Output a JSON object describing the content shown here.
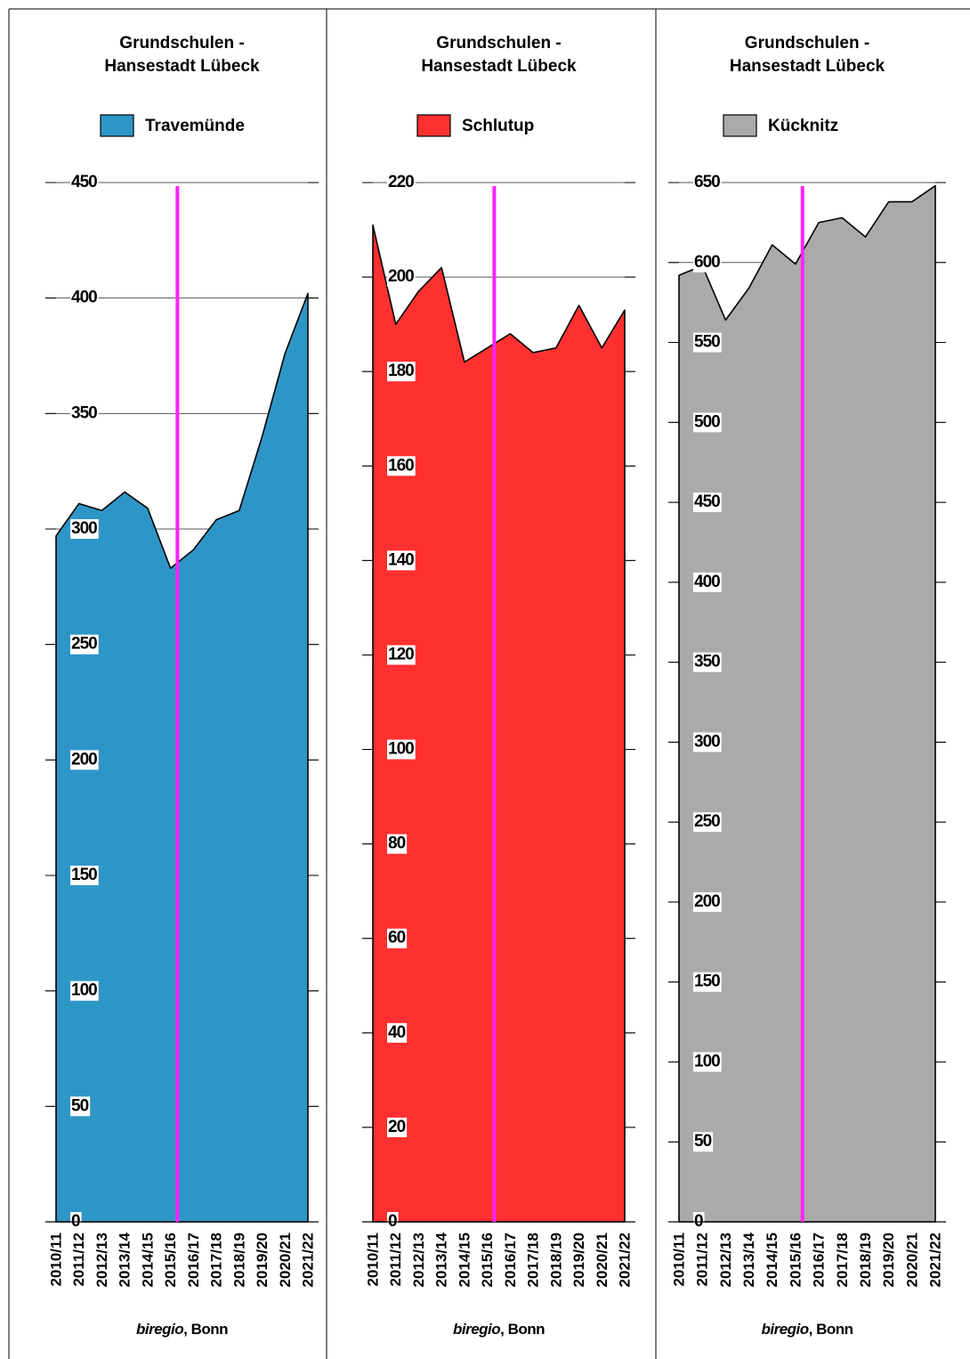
{
  "chart_data": [
    {
      "type": "area",
      "title": "Grundschulen - Hansestadt Lübeck",
      "categories": [
        "2010/11",
        "2011/12",
        "2012/13",
        "2013/14",
        "2014/15",
        "2015/16",
        "2016/17",
        "2017/18",
        "2018/19",
        "2019/20",
        "2020/21",
        "2021/22"
      ],
      "series": [
        {
          "name": "Travemünde",
          "color": "#2e96c7",
          "values": [
            297,
            311,
            308,
            316,
            309,
            283,
            291,
            304,
            308,
            340,
            376,
            402
          ]
        }
      ],
      "ylim": [
        0,
        450
      ],
      "yticks": [
        0,
        50,
        100,
        150,
        200,
        250,
        300,
        350,
        400,
        450
      ],
      "grid": true,
      "source": [
        "biregio",
        ", Bonn"
      ]
    },
    {
      "type": "area",
      "title": "Grundschulen - Hansestadt Lübeck",
      "categories": [
        "2010/11",
        "2011/12",
        "2012/13",
        "2013/14",
        "2014/15",
        "2015/16",
        "2016/17",
        "2017/18",
        "2018/19",
        "2019/20",
        "2020/21",
        "2021/22"
      ],
      "series": [
        {
          "name": "Schlutup",
          "color": "#ff3030",
          "values": [
            211,
            190,
            197,
            202,
            182,
            185,
            188,
            184,
            185,
            194,
            185,
            193
          ]
        }
      ],
      "ylim": [
        0,
        220
      ],
      "yticks": [
        0,
        20,
        40,
        60,
        80,
        100,
        120,
        140,
        160,
        180,
        200,
        220
      ],
      "grid": true,
      "source": [
        "biregio",
        ", Bonn"
      ]
    },
    {
      "type": "area",
      "title": "Grundschulen - Hansestadt Lübeck",
      "categories": [
        "2010/11",
        "2011/12",
        "2012/13",
        "2013/14",
        "2014/15",
        "2015/16",
        "2016/17",
        "2017/18",
        "2018/19",
        "2019/20",
        "2020/21",
        "2021/22"
      ],
      "series": [
        {
          "name": "Kücknitz",
          "color": "#aaaaaa",
          "values": [
            592,
            598,
            564,
            584,
            611,
            599,
            625,
            628,
            616,
            638,
            638,
            648
          ]
        }
      ],
      "ylim": [
        0,
        650
      ],
      "yticks": [
        0,
        50,
        100,
        150,
        200,
        250,
        300,
        350,
        400,
        450,
        500,
        550,
        600,
        650
      ],
      "grid": true,
      "source": [
        "biregio",
        ", Bonn"
      ]
    }
  ]
}
